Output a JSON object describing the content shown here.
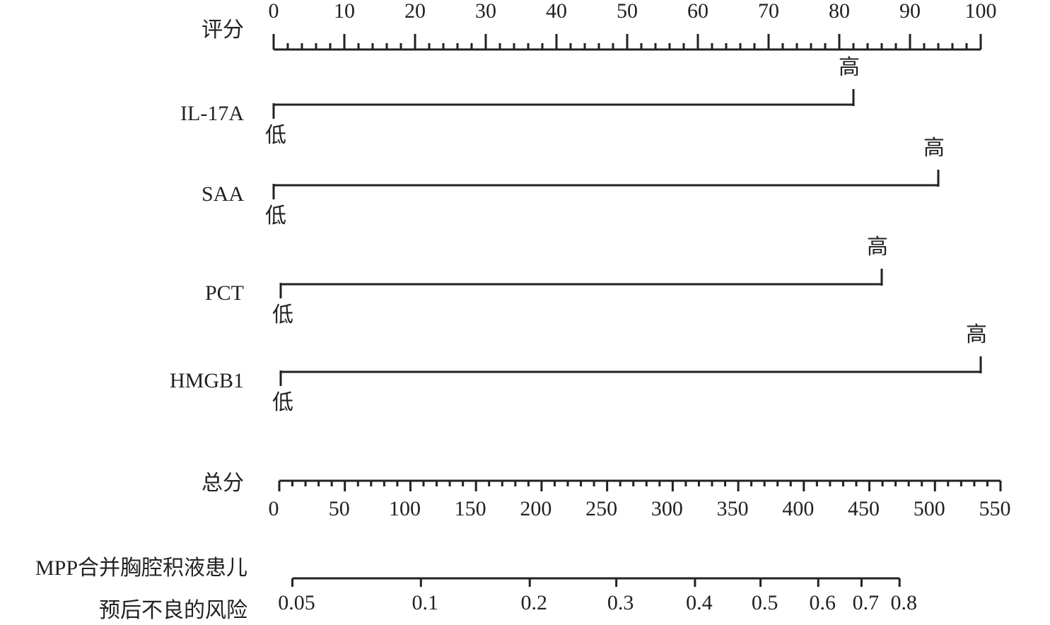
{
  "chart_data": {
    "type": "nomogram",
    "points_axis": {
      "label": "评分",
      "xlim": [
        0,
        100
      ],
      "xticks": [
        0,
        10,
        20,
        30,
        40,
        50,
        60,
        70,
        80,
        90,
        100
      ],
      "minor_ticks": [
        2,
        4,
        6,
        8,
        12,
        14,
        16,
        18,
        22,
        24,
        26,
        28,
        32,
        34,
        36,
        38,
        42,
        44,
        46,
        48,
        52,
        54,
        56,
        58,
        62,
        64,
        66,
        68,
        72,
        74,
        76,
        78,
        82,
        84,
        86,
        88,
        92,
        94,
        96,
        98
      ]
    },
    "predictors": [
      {
        "name": "IL-17A",
        "low_label": "低",
        "high_label": "高",
        "values": [
          0,
          82
        ]
      },
      {
        "name": "SAA",
        "low_label": "低",
        "high_label": "高",
        "values": [
          0,
          94
        ]
      },
      {
        "name": "PCT",
        "low_label": "低",
        "high_label": "高",
        "values": [
          1,
          86
        ]
      },
      {
        "name": "HMGB1",
        "low_label": "低",
        "high_label": "高",
        "values": [
          1,
          100
        ]
      }
    ],
    "total_axis": {
      "label": "总分",
      "xlim": [
        0,
        550
      ],
      "xticks": [
        0,
        50,
        100,
        150,
        200,
        250,
        300,
        350,
        400,
        450,
        500,
        550
      ],
      "minor_ticks": [
        10,
        20,
        30,
        40,
        60,
        70,
        80,
        90,
        110,
        120,
        130,
        140,
        160,
        170,
        180,
        190,
        210,
        220,
        230,
        240,
        260,
        270,
        280,
        290,
        310,
        320,
        330,
        340,
        360,
        370,
        380,
        390,
        410,
        420,
        430,
        440,
        460,
        470,
        480,
        490,
        510,
        520,
        530,
        540
      ]
    },
    "risk_axis": {
      "label": [
        "MPP合并胸腔积液患儿",
        "预后不良的风险"
      ],
      "xticks": [
        {
          "value": 0.05,
          "total": 10
        },
        {
          "value": 0.1,
          "total": 108
        },
        {
          "value": 0.2,
          "total": 191
        },
        {
          "value": 0.3,
          "total": 257
        },
        {
          "value": 0.4,
          "total": 317
        },
        {
          "value": 0.5,
          "total": 367
        },
        {
          "value": 0.6,
          "total": 411
        },
        {
          "value": 0.7,
          "total": 444
        },
        {
          "value": 0.8,
          "total": 473
        }
      ]
    }
  }
}
